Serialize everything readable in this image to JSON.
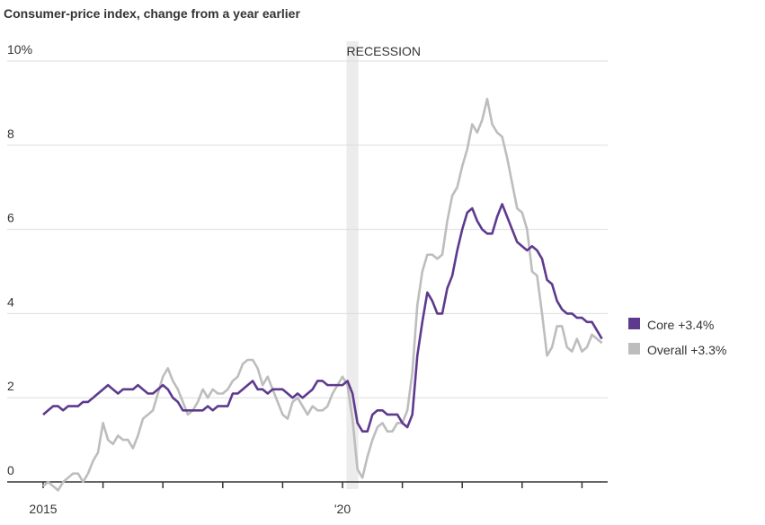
{
  "chart_data": {
    "type": "line",
    "title": "Consumer-price index, change from a year earlier",
    "categories": [
      "2015",
      null,
      null,
      null,
      null,
      null,
      null,
      null,
      null,
      null,
      null,
      null,
      null,
      null,
      null,
      null,
      null,
      null,
      null,
      null,
      null,
      null,
      null,
      null,
      null,
      null,
      null,
      null,
      null,
      null,
      null,
      null,
      null,
      null,
      null,
      null,
      null,
      null,
      null,
      null,
      null,
      null,
      null,
      null,
      null,
      null,
      null,
      null,
      null,
      null,
      null,
      null,
      null,
      null,
      null,
      null,
      null,
      null,
      null,
      null,
      "'20",
      null,
      null,
      null,
      null,
      null,
      null,
      null,
      null,
      null,
      null,
      null,
      null,
      null,
      null,
      null,
      null,
      null,
      null,
      null,
      null,
      null,
      null,
      null,
      null,
      null,
      null,
      null,
      null,
      null,
      null,
      null,
      null,
      null,
      null,
      null,
      null,
      null,
      null,
      null,
      null,
      null,
      null,
      null,
      null,
      null,
      null,
      null,
      null,
      null,
      null,
      null,
      null
    ],
    "series": [
      {
        "name": "Core +3.4%",
        "color": "#5e3a8e",
        "values": [
          1.6,
          1.7,
          1.8,
          1.8,
          1.7,
          1.8,
          1.8,
          1.8,
          1.9,
          1.9,
          2.0,
          2.1,
          2.2,
          2.3,
          2.2,
          2.1,
          2.2,
          2.2,
          2.2,
          2.3,
          2.2,
          2.1,
          2.1,
          2.2,
          2.3,
          2.2,
          2.0,
          1.9,
          1.7,
          1.7,
          1.7,
          1.7,
          1.7,
          1.8,
          1.7,
          1.8,
          1.8,
          1.8,
          2.1,
          2.1,
          2.2,
          2.3,
          2.4,
          2.2,
          2.2,
          2.1,
          2.2,
          2.2,
          2.2,
          2.1,
          2.0,
          2.1,
          2.0,
          2.1,
          2.2,
          2.4,
          2.4,
          2.3,
          2.3,
          2.3,
          2.3,
          2.4,
          2.1,
          1.4,
          1.2,
          1.2,
          1.6,
          1.7,
          1.7,
          1.6,
          1.6,
          1.6,
          1.4,
          1.3,
          1.6,
          3.0,
          3.8,
          4.5,
          4.3,
          4.0,
          4.0,
          4.6,
          4.9,
          5.5,
          6.0,
          6.4,
          6.5,
          6.2,
          6.0,
          5.9,
          5.9,
          6.3,
          6.6,
          6.3,
          6.0,
          5.7,
          5.6,
          5.5,
          5.6,
          5.5,
          5.3,
          4.8,
          4.7,
          4.3,
          4.1,
          4.0,
          4.0,
          3.9,
          3.9,
          3.8,
          3.8,
          3.6,
          3.4
        ]
      },
      {
        "name": "Overall +3.3%",
        "color": "#bdbdbd",
        "values": [
          -0.1,
          0.0,
          -0.1,
          -0.2,
          0.0,
          0.1,
          0.2,
          0.2,
          0.0,
          0.2,
          0.5,
          0.7,
          1.4,
          1.0,
          0.9,
          1.1,
          1.0,
          1.0,
          0.8,
          1.1,
          1.5,
          1.6,
          1.7,
          2.1,
          2.5,
          2.7,
          2.4,
          2.2,
          1.9,
          1.6,
          1.7,
          1.9,
          2.2,
          2.0,
          2.2,
          2.1,
          2.1,
          2.2,
          2.4,
          2.5,
          2.8,
          2.9,
          2.9,
          2.7,
          2.3,
          2.5,
          2.2,
          1.9,
          1.6,
          1.5,
          1.9,
          2.0,
          1.8,
          1.6,
          1.8,
          1.7,
          1.7,
          1.8,
          2.1,
          2.3,
          2.5,
          2.3,
          1.5,
          0.3,
          0.1,
          0.6,
          1.0,
          1.3,
          1.4,
          1.2,
          1.2,
          1.4,
          1.4,
          1.7,
          2.6,
          4.2,
          5.0,
          5.4,
          5.4,
          5.3,
          5.4,
          6.2,
          6.8,
          7.0,
          7.5,
          7.9,
          8.5,
          8.3,
          8.6,
          9.1,
          8.5,
          8.3,
          8.2,
          7.7,
          7.1,
          6.5,
          6.4,
          6.0,
          5.0,
          4.9,
          4.0,
          3.0,
          3.2,
          3.7,
          3.7,
          3.2,
          3.1,
          3.4,
          3.1,
          3.2,
          3.5,
          3.4,
          3.3
        ]
      }
    ],
    "recession": {
      "label": "RECESSION",
      "from": 61,
      "to": 63
    },
    "ylim": [
      0,
      10
    ],
    "yticks": [
      0,
      2,
      4,
      6,
      8,
      {
        "value": 10,
        "label": "10%"
      }
    ],
    "grid": true,
    "legend": "right"
  }
}
